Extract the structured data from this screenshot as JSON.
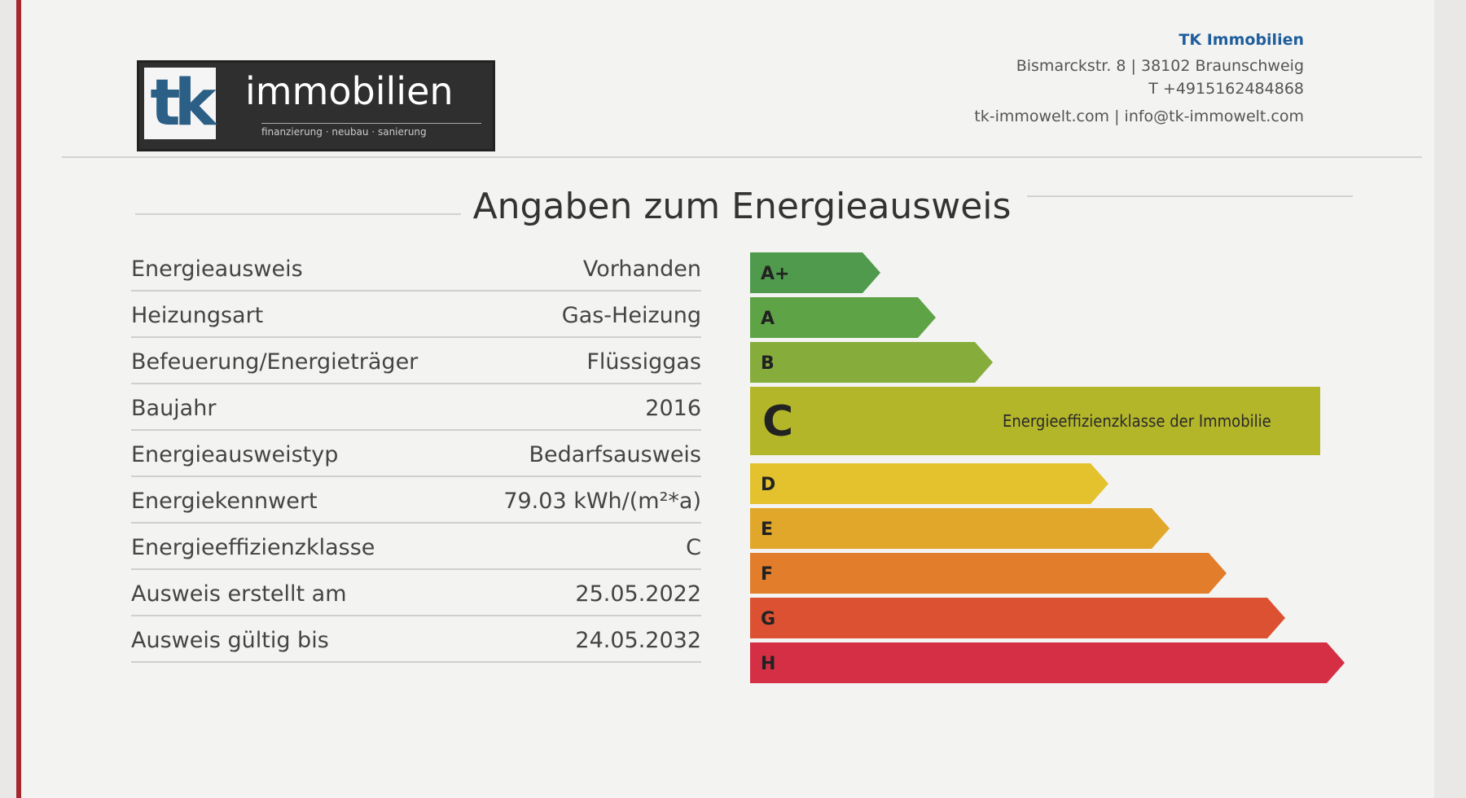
{
  "header": {
    "logo_mark": "tk",
    "logo_text": "immobilien",
    "tagline": "finanzierung · neubau · sanierung",
    "company": "TK Immobilien",
    "address": "Bismarckstr. 8 | 38102 Braunschweig",
    "phone": "T +4915162484868",
    "contact": "tk-immowelt.com | info@tk-immowelt.com"
  },
  "title": "Angaben zum Energieausweis",
  "table": {
    "rows": [
      [
        "Energieausweis",
        "Vorhanden"
      ],
      [
        "Heizungsart",
        "Gas-Heizung"
      ],
      [
        "Befeuerung/Energieträger",
        "Flüssiggas"
      ],
      [
        "Baujahr",
        "2016"
      ],
      [
        "Energieausweistyp",
        "Bedarfsausweis"
      ],
      [
        "Energiekennwert",
        "79.03 kWh/(m²*a)"
      ],
      [
        "Energieeffizienzklasse",
        "C"
      ],
      [
        "Ausweis erstellt am",
        "25.05.2022"
      ],
      [
        "Ausweis gültig bis",
        "24.05.2032"
      ]
    ]
  },
  "scale": {
    "classes": [
      {
        "label": "A+",
        "color": "#4f9a4c"
      },
      {
        "label": "A",
        "color": "#5ea447"
      },
      {
        "label": "B",
        "color": "#86ad3c"
      },
      {
        "label": "C",
        "color": "#b4b62a"
      },
      {
        "label": "D",
        "color": "#e3c22e"
      },
      {
        "label": "E",
        "color": "#e1a72a"
      },
      {
        "label": "F",
        "color": "#e27d2b"
      },
      {
        "label": "G",
        "color": "#dc5131"
      },
      {
        "label": "H",
        "color": "#d42f45"
      }
    ],
    "highlight_label": "Energieeffizienzklasse der Immobilie"
  }
}
